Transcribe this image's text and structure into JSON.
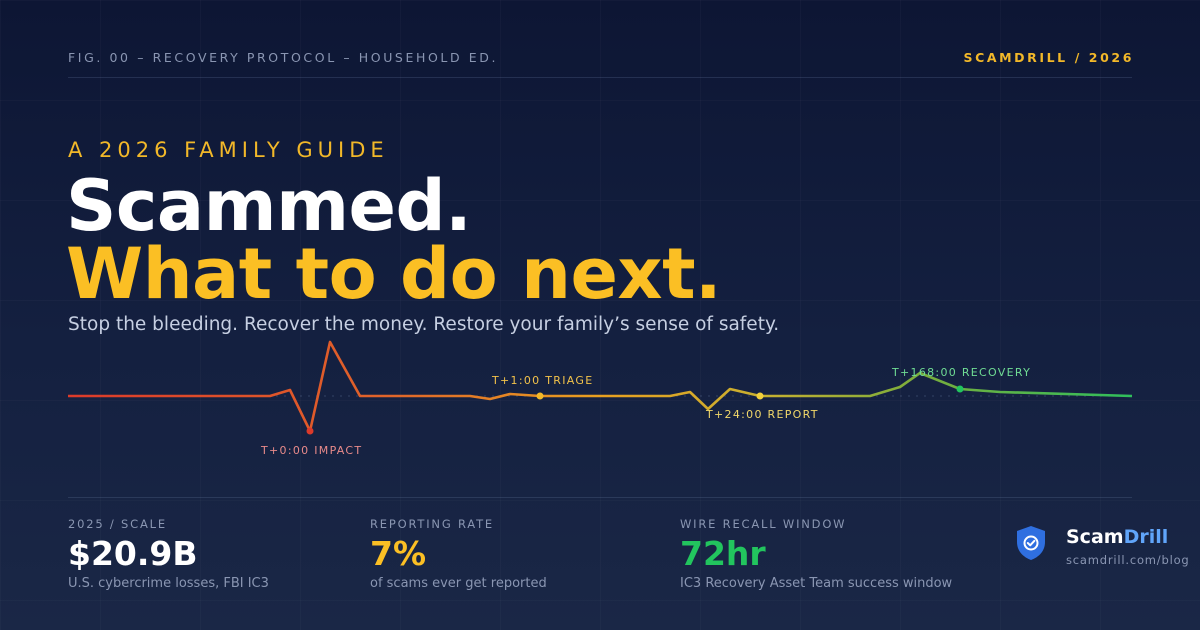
{
  "header": {
    "fig_label": "FIG. 00 – RECOVERY PROTOCOL – HOUSEHOLD ED.",
    "brand_year": "SCAMDRILL / 2026"
  },
  "hero": {
    "eyebrow": "A 2026 FAMILY GUIDE",
    "title_line1": "Scammed.",
    "title_line2": "What to do next.",
    "subtitle": "Stop the bleeding. Recover the money. Restore your family’s sense of safety."
  },
  "timeline": {
    "markers": [
      {
        "label": "T+0:00 IMPACT",
        "color": "#e86b6b"
      },
      {
        "label": "T+1:00 TRIAGE",
        "color": "#f2b829"
      },
      {
        "label": "T+24:00 REPORT",
        "color": "#f2d03b"
      },
      {
        "label": "T+168:00 RECOVERY",
        "color": "#4ade80"
      }
    ],
    "colors": {
      "start": "#dc3a2a",
      "mid": "#e8a020",
      "end": "#2fbf5c"
    }
  },
  "stats": [
    {
      "label": "2025 / SCALE",
      "value": "$20.9B",
      "desc": "U.S. cybercrime losses, FBI IC3",
      "color": "#ffffff"
    },
    {
      "label": "REPORTING RATE",
      "value": "7%",
      "desc": "of scams ever get reported",
      "color": "#fbbf24"
    },
    {
      "label": "WIRE RECALL WINDOW",
      "value": "72hr",
      "desc": "IC3 Recovery Asset Team success window",
      "color": "#22c55e"
    }
  ],
  "logo": {
    "icon": "shield-check-icon",
    "name_part1": "Scam",
    "name_part2": "Drill",
    "url": "scamdrill.com/blog"
  }
}
